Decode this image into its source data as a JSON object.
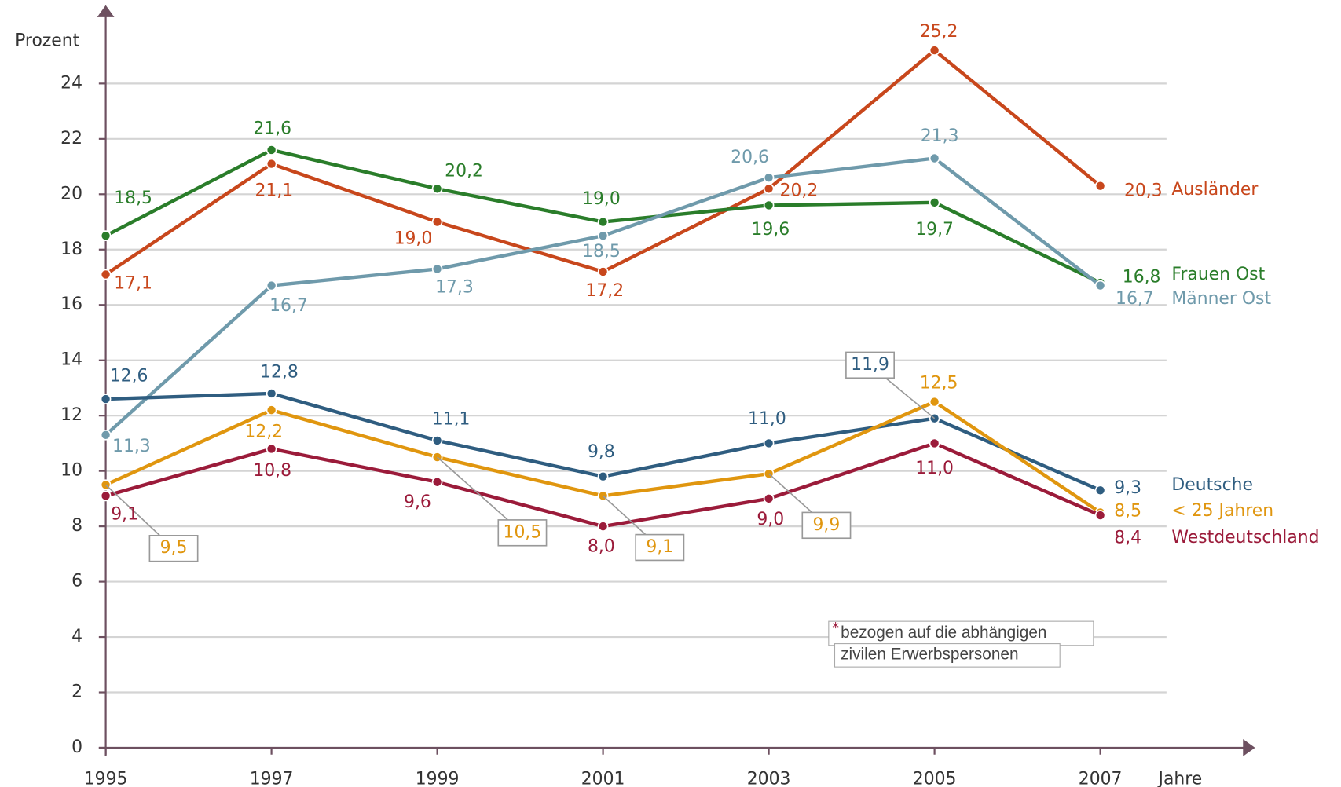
{
  "chart_data": {
    "type": "line",
    "y_label": "Prozent",
    "x_label": "Jahre",
    "x": [
      1995,
      1997,
      1999,
      2001,
      2003,
      2005,
      2007
    ],
    "xlim": [
      1995,
      2007
    ],
    "xticks": [
      1995,
      1997,
      1999,
      2001,
      2003,
      2005,
      2007
    ],
    "ylim": [
      0,
      26
    ],
    "yticks": [
      0,
      2,
      4,
      6,
      8,
      10,
      12,
      14,
      16,
      18,
      20,
      22,
      24
    ],
    "grid": true,
    "series": [
      {
        "name": "Ausländer",
        "color": "#c8471c",
        "values": [
          17.1,
          21.1,
          19.0,
          17.2,
          20.2,
          25.2,
          20.3
        ],
        "value_labels": [
          "17,1",
          "21,1",
          "19,0",
          "17,2",
          "20,2",
          "25,2",
          "20,3"
        ]
      },
      {
        "name": "Frauen Ost",
        "color": "#2a7d2a",
        "values": [
          18.5,
          21.6,
          20.2,
          19.0,
          19.6,
          19.7,
          16.8
        ],
        "value_labels": [
          "18,5",
          "21,6",
          "20,2",
          "19,0",
          "19,6",
          "19,7",
          "16,8"
        ]
      },
      {
        "name": "Männer Ost",
        "color": "#6f9aab",
        "values": [
          11.3,
          16.7,
          17.3,
          18.5,
          20.6,
          21.3,
          16.7
        ],
        "value_labels": [
          "11,3",
          "16,7",
          "17,3",
          "18,5",
          "20,6",
          "21,3",
          "16,7"
        ]
      },
      {
        "name": "Deutsche",
        "color": "#2f5d80",
        "values": [
          12.6,
          12.8,
          11.1,
          9.8,
          11.0,
          11.9,
          9.3
        ],
        "value_labels": [
          "12,6",
          "12,8",
          "11,1",
          "9,8",
          "11,0",
          "11,9",
          "9,3"
        ]
      },
      {
        "name": "< 25 Jahren",
        "color": "#e0960f",
        "values": [
          9.5,
          12.2,
          10.5,
          9.1,
          9.9,
          12.5,
          8.5
        ],
        "value_labels": [
          "9,5",
          "12,2",
          "10,5",
          "9,1",
          "9,9",
          "12,5",
          "8,5"
        ]
      },
      {
        "name": "Westdeutschland",
        "color": "#9b1b3a",
        "values": [
          9.1,
          10.8,
          9.6,
          8.0,
          9.0,
          11.0,
          8.4
        ],
        "value_labels": [
          "9,1",
          "10,8",
          "9,6",
          "8,0",
          "9,0",
          "11,0",
          "8,4"
        ]
      }
    ],
    "footnote_mark": "*",
    "footnote": [
      "bezogen auf die abhängigen",
      "zivilen Erwerbspersonen"
    ]
  }
}
